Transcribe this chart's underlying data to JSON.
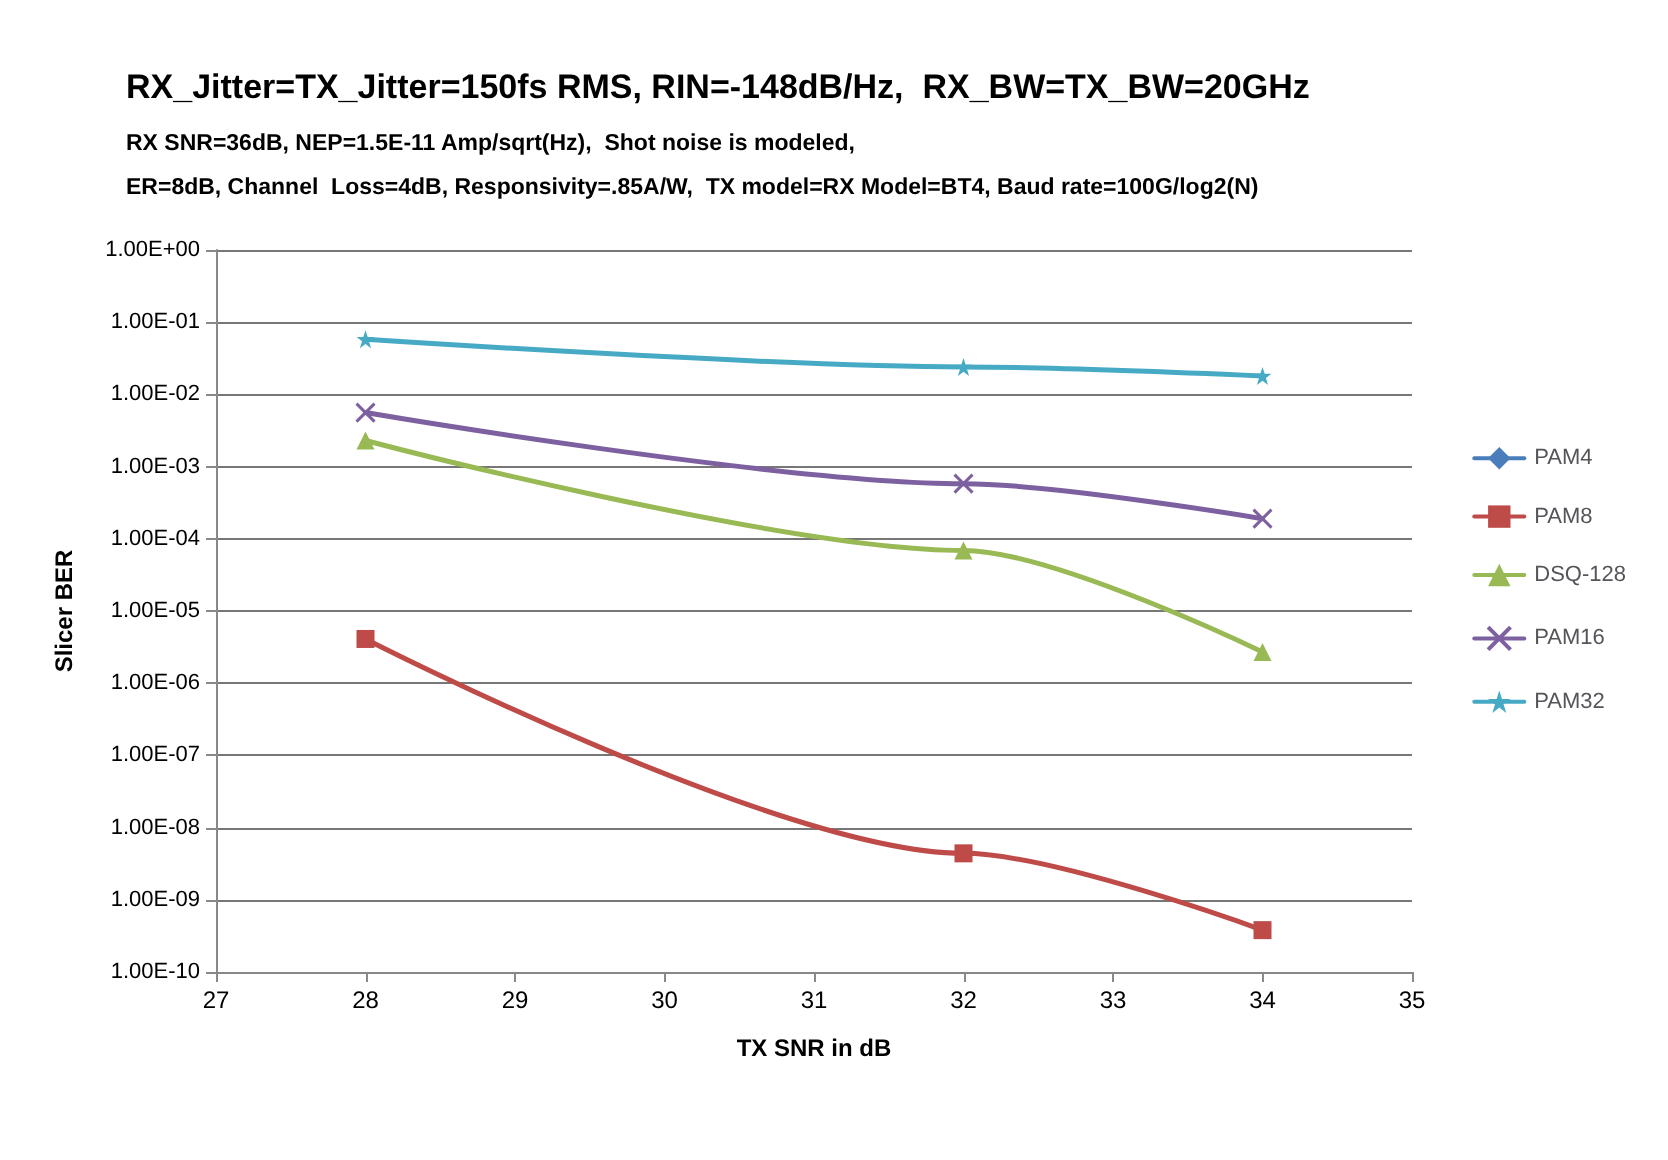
{
  "chart_data": {
    "type": "line",
    "title": "RX_Jitter=TX_Jitter=150fs RMS, RIN=-148dB/Hz,  RX_BW=TX_BW=20GHz",
    "subtitle": "RX SNR=36dB, NEP=1.5E-11 Amp/sqrt(Hz),  Shot noise is modeled,\nER=8dB, Channel  Loss=4dB, Responsivity=.85A/W,  TX model=RX Model=BT4, Baud rate=100G/log2(N)",
    "xlabel": "TX SNR in dB",
    "ylabel": "Slicer BER",
    "x": [
      28,
      32,
      34
    ],
    "series": [
      {
        "name": "PAM4",
        "color": "#4a7ebb",
        "marker": "diamond",
        "values": [
          null,
          null,
          null
        ]
      },
      {
        "name": "PAM8",
        "color": "#be4b48",
        "marker": "square",
        "values": [
          4.1e-06,
          4.4e-09,
          3.8e-10
        ]
      },
      {
        "name": "DSQ-128",
        "color": "#98b954",
        "marker": "triangle",
        "values": [
          0.0023,
          6.9e-05,
          2.7e-06
        ]
      },
      {
        "name": "PAM16",
        "color": "#7d60a0",
        "marker": "cross",
        "values": [
          0.0056,
          0.00058,
          0.00019
        ]
      },
      {
        "name": "PAM32",
        "color": "#46aac5",
        "marker": "star",
        "values": [
          0.058,
          0.024,
          0.018
        ]
      }
    ],
    "log": "y",
    "xlim": [
      27,
      35
    ],
    "xticks": [
      27,
      28,
      29,
      30,
      31,
      32,
      33,
      34,
      35
    ],
    "ylim": [
      1e-10,
      1
    ],
    "yticks": [
      {
        "value": 1,
        "label": "1.00E+00"
      },
      {
        "value": 0.1,
        "label": "1.00E-01"
      },
      {
        "value": 0.01,
        "label": "1.00E-02"
      },
      {
        "value": 0.001,
        "label": "1.00E-03"
      },
      {
        "value": 0.0001,
        "label": "1.00E-04"
      },
      {
        "value": 1e-05,
        "label": "1.00E-05"
      },
      {
        "value": 1e-06,
        "label": "1.00E-06"
      },
      {
        "value": 1e-07,
        "label": "1.00E-07"
      },
      {
        "value": 1e-08,
        "label": "1.00E-08"
      },
      {
        "value": 1e-09,
        "label": "1.00E-09"
      },
      {
        "value": 1e-10,
        "label": "1.00E-10"
      }
    ],
    "grid": "y",
    "legend": "right",
    "line_style": "solid"
  }
}
